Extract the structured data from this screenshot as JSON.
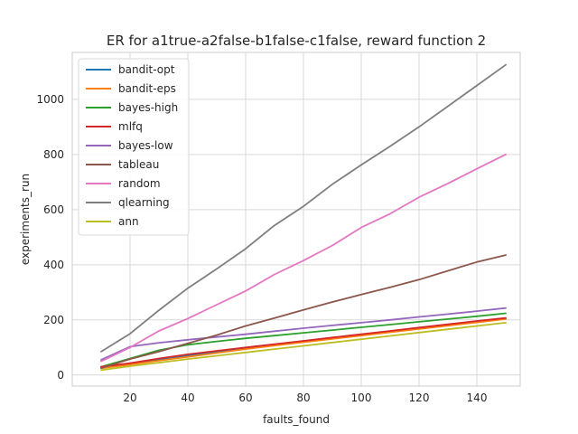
{
  "chart_data": {
    "type": "line",
    "title": "ER for a1true-a2false-b1false-c1false, reward function 2",
    "xlabel": "faults_found",
    "ylabel": "experiments_run",
    "xlim": [
      0,
      155
    ],
    "ylim": [
      -40,
      1170
    ],
    "xticks": [
      20,
      40,
      60,
      80,
      100,
      120,
      140
    ],
    "yticks": [
      0,
      200,
      400,
      600,
      800,
      1000
    ],
    "grid": true,
    "legend_position": "top-left",
    "x": [
      10,
      20,
      30,
      40,
      50,
      60,
      70,
      80,
      90,
      100,
      110,
      120,
      130,
      140,
      150
    ],
    "series": [
      {
        "name": "bandit-opt",
        "color": "#1f77b4",
        "values": [
          28,
          40,
          55,
          70,
          85,
          98,
          110,
          122,
          134,
          146,
          158,
          170,
          182,
          194,
          205
        ]
      },
      {
        "name": "bandit-eps",
        "color": "#ff7f0e",
        "values": [
          25,
          38,
          52,
          66,
          80,
          94,
          107,
          119,
          131,
          143,
          155,
          167,
          179,
          191,
          203
        ]
      },
      {
        "name": "bayes-high",
        "color": "#2ca02c",
        "values": [
          30,
          60,
          90,
          110,
          122,
          133,
          143,
          153,
          163,
          173,
          183,
          193,
          203,
          213,
          224
        ]
      },
      {
        "name": "mlfq",
        "color": "#d62728",
        "values": [
          30,
          43,
          60,
          75,
          88,
          100,
          112,
          124,
          136,
          148,
          160,
          172,
          184,
          196,
          207
        ]
      },
      {
        "name": "bayes-low",
        "color": "#9467bd",
        "values": [
          55,
          103,
          117,
          128,
          138,
          148,
          159,
          170,
          180,
          190,
          200,
          211,
          221,
          232,
          243
        ]
      },
      {
        "name": "tableau",
        "color": "#8c564b",
        "values": [
          25,
          58,
          85,
          115,
          145,
          178,
          207,
          236,
          265,
          292,
          318,
          346,
          378,
          410,
          435
        ]
      },
      {
        "name": "random",
        "color": "#e377c2",
        "values": [
          50,
          100,
          160,
          205,
          255,
          305,
          365,
          415,
          470,
          535,
          585,
          645,
          695,
          748,
          800
        ]
      },
      {
        "name": "qlearning",
        "color": "#7f7f7f",
        "values": [
          85,
          150,
          235,
          315,
          385,
          458,
          543,
          612,
          692,
          762,
          830,
          900,
          975,
          1050,
          1125
        ]
      },
      {
        "name": "ann",
        "color": "#bcbd22",
        "values": [
          18,
          32,
          45,
          58,
          70,
          82,
          94,
          106,
          118,
          130,
          142,
          154,
          166,
          178,
          190
        ]
      }
    ]
  }
}
